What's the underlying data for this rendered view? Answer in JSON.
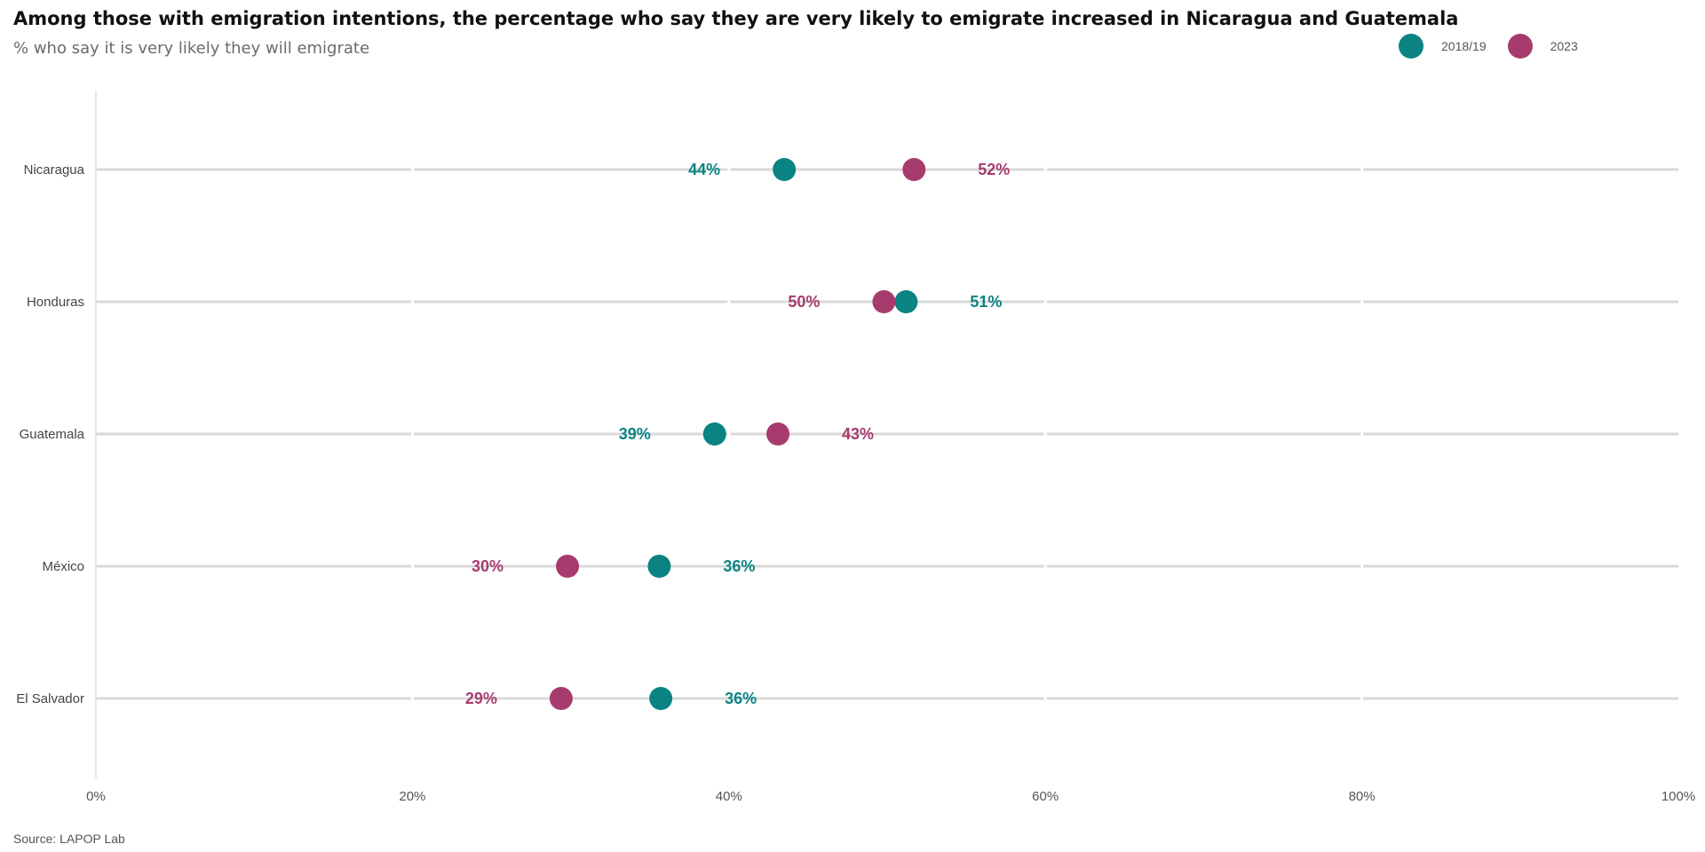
{
  "chart_data": {
    "type": "dot",
    "title": "Among those with emigration intentions, the percentage who say they are very likely to emigrate increased in Nicaragua and Guatemala",
    "subtitle": "% who say it is very likely they will emigrate",
    "source": "Source: LAPOP Lab",
    "categories": [
      "Nicaragua",
      "Honduras",
      "Guatemala",
      "México",
      "El Salvador"
    ],
    "series": [
      {
        "name": "2018/19",
        "color": "#0b8383",
        "values": [
          43.5,
          51.2,
          39.1,
          35.6,
          35.7
        ],
        "labels": [
          "44%",
          "51%",
          "39%",
          "36%",
          "36%"
        ]
      },
      {
        "name": "2023",
        "color": "#a73b6e",
        "values": [
          51.7,
          49.8,
          43.1,
          29.8,
          29.4
        ],
        "labels": [
          "52%",
          "50%",
          "43%",
          "30%",
          "29%"
        ]
      }
    ],
    "xlim": [
      0,
      100
    ],
    "xticks": [
      "0%",
      "20%",
      "40%",
      "60%",
      "80%",
      "100%"
    ],
    "xtick_values": [
      0,
      20,
      40,
      60,
      80,
      100
    ],
    "grid": "horizontal",
    "legend_position": "top-right"
  }
}
